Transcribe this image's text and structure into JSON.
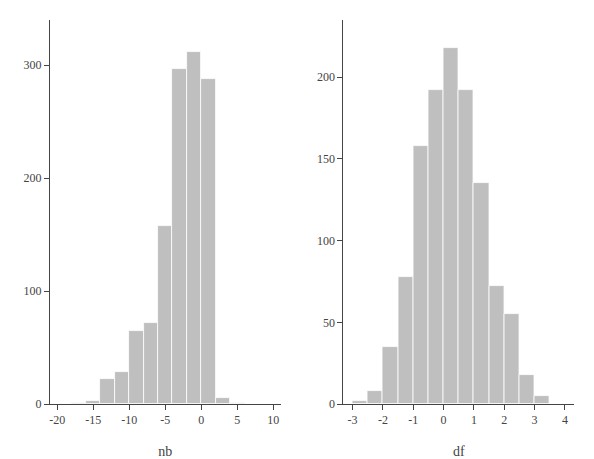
{
  "chart_data": [
    {
      "type": "histogram",
      "xlabel": "nb",
      "bins": [
        -20,
        -18,
        -16,
        -14,
        -12,
        -10,
        -8,
        -6,
        -4,
        -2,
        0,
        2,
        4,
        6,
        8
      ],
      "values": [
        0,
        1,
        3,
        22,
        28,
        65,
        72,
        158,
        297,
        312,
        288,
        5,
        1,
        0
      ],
      "color": "#bfbfbf",
      "xlim": [
        -21,
        11
      ],
      "xticks": [
        -20,
        -15,
        -10,
        -5,
        0,
        5,
        10
      ],
      "ylim": [
        0,
        340
      ],
      "yticks": [
        0,
        100,
        200,
        300
      ],
      "grid": false
    },
    {
      "type": "histogram",
      "xlabel": "df",
      "bins": [
        -3.0,
        -2.5,
        -2.0,
        -1.5,
        -1.0,
        -0.5,
        0.0,
        0.5,
        1.0,
        1.5,
        2.0,
        2.5,
        3.0,
        3.5
      ],
      "values": [
        2,
        8,
        35,
        78,
        158,
        192,
        218,
        192,
        135,
        72,
        55,
        18,
        5
      ],
      "color": "#bfbfbf",
      "xlim": [
        -3.3,
        4.3
      ],
      "xticks": [
        -3,
        -2,
        -1,
        0,
        1,
        2,
        3,
        4
      ],
      "ylim": [
        0,
        235
      ],
      "yticks": [
        0,
        50,
        100,
        150,
        200
      ],
      "grid": false
    }
  ]
}
